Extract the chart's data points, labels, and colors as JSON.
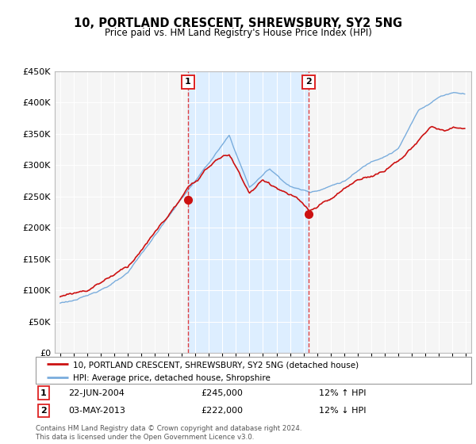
{
  "title": "10, PORTLAND CRESCENT, SHREWSBURY, SY2 5NG",
  "subtitle": "Price paid vs. HM Land Registry's House Price Index (HPI)",
  "legend_line1": "10, PORTLAND CRESCENT, SHREWSBURY, SY2 5NG (detached house)",
  "legend_line2": "HPI: Average price, detached house, Shropshire",
  "annotation1_date": "22-JUN-2004",
  "annotation1_price": "£245,000",
  "annotation1_hpi": "12% ↑ HPI",
  "annotation2_date": "03-MAY-2013",
  "annotation2_price": "£222,000",
  "annotation2_hpi": "12% ↓ HPI",
  "footer": "Contains HM Land Registry data © Crown copyright and database right 2024.\nThis data is licensed under the Open Government Licence v3.0.",
  "hpi_color": "#7aaddd",
  "price_color": "#cc1111",
  "vline_color": "#dd2222",
  "bg_color": "#f5f5f5",
  "shade_color": "#ddeeff",
  "ylim": [
    0,
    450000
  ],
  "yticks": [
    0,
    50000,
    100000,
    150000,
    200000,
    250000,
    300000,
    350000,
    400000,
    450000
  ]
}
